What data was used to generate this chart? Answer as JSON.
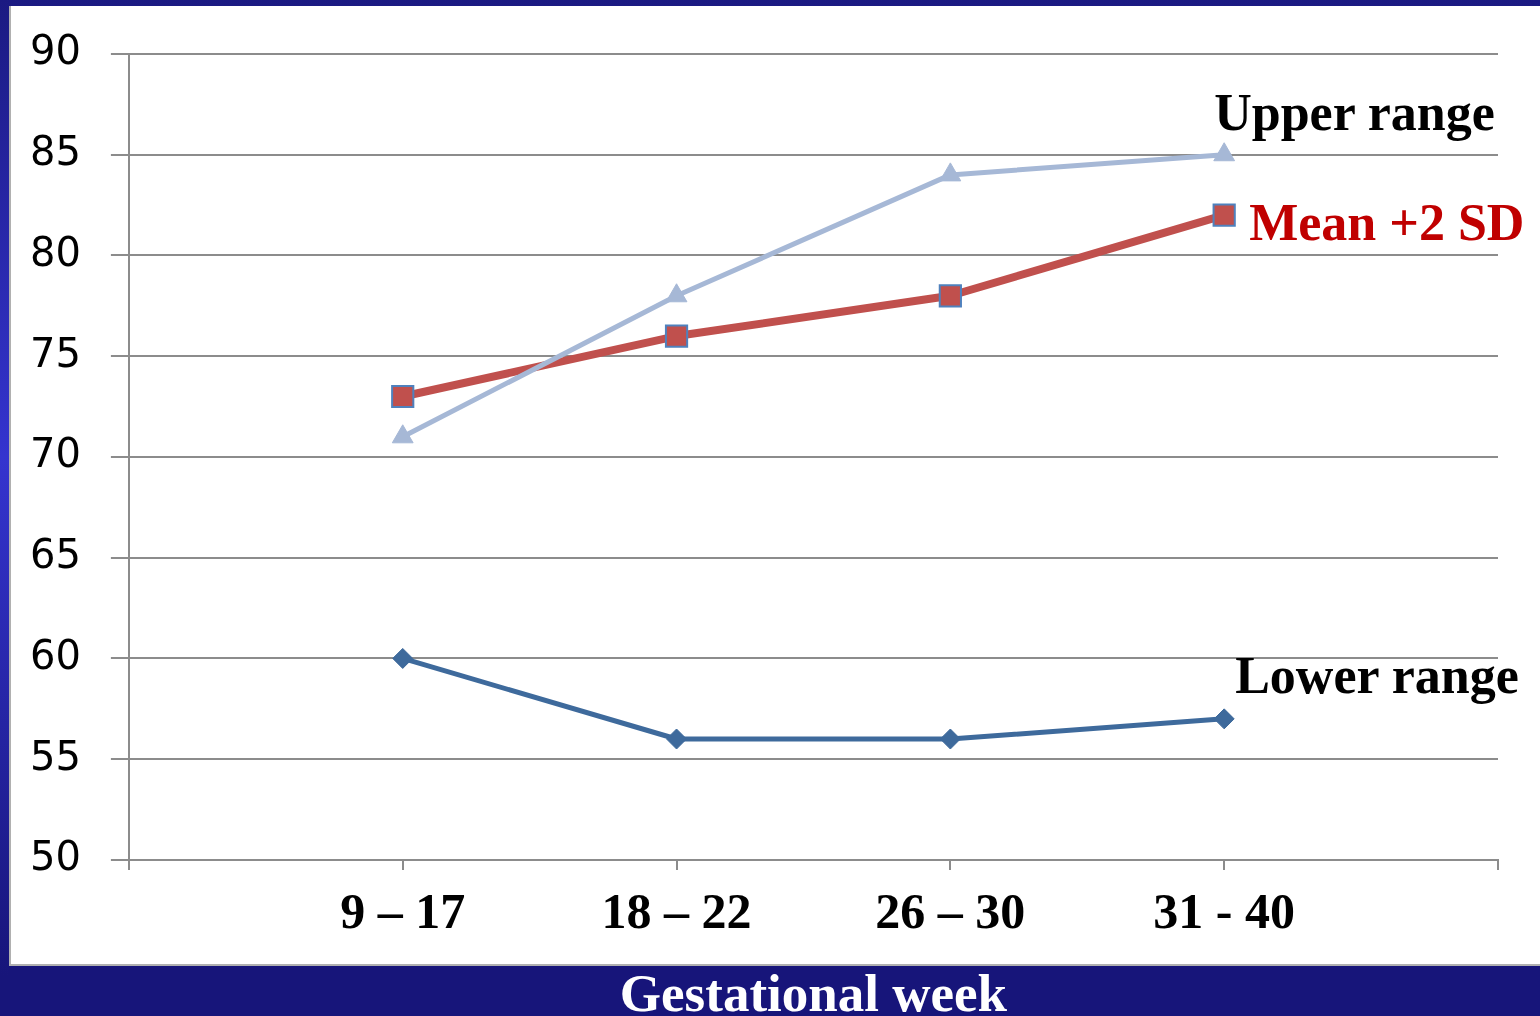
{
  "chart_data": {
    "type": "line",
    "xlabel": "Gestational week",
    "categories": [
      null,
      "9 – 17",
      "18 – 22",
      "26 – 30",
      "31 - 40",
      null
    ],
    "series": [
      {
        "name": "Upper range",
        "color": "#a6b8d6",
        "marker": "triangle",
        "values": [
          null,
          71,
          78,
          84,
          85,
          null
        ]
      },
      {
        "name": "Mean +2 SD",
        "color": "#c0504d",
        "marker": "square",
        "values": [
          null,
          73,
          76,
          78,
          82,
          null
        ]
      },
      {
        "name": "Lower range",
        "color": "#3e6a9c",
        "marker": "diamond",
        "values": [
          null,
          60,
          56,
          56,
          57,
          null
        ]
      }
    ],
    "ylim": [
      50,
      90
    ],
    "yticks": [
      50,
      55,
      60,
      65,
      70,
      75,
      80,
      85,
      90
    ],
    "grid": "y",
    "legend": false,
    "line_style": "solid"
  }
}
